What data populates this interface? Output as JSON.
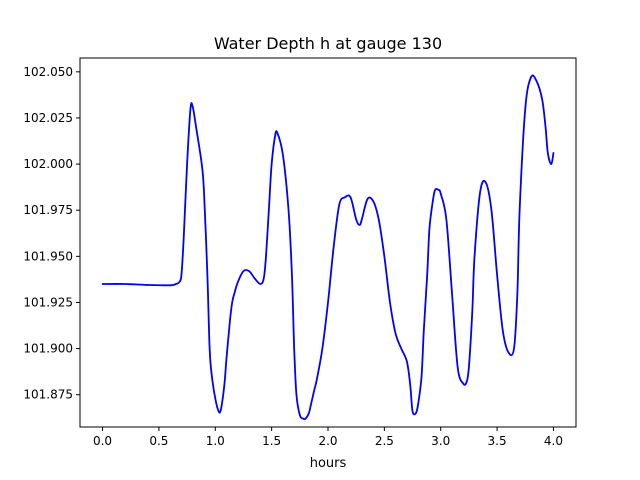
{
  "chart_data": {
    "type": "line",
    "title": "Water Depth h at gauge 130",
    "xlabel": "hours",
    "ylabel": "",
    "xlim": [
      -0.2,
      4.2
    ],
    "ylim": [
      101.8575,
      102.0575
    ],
    "xticks": [
      0.0,
      0.5,
      1.0,
      1.5,
      2.0,
      2.5,
      3.0,
      3.5,
      4.0
    ],
    "xtick_labels": [
      "0.0",
      "0.5",
      "1.0",
      "1.5",
      "2.0",
      "2.5",
      "3.0",
      "3.5",
      "4.0"
    ],
    "yticks": [
      101.875,
      101.9,
      101.925,
      101.95,
      101.975,
      102.0,
      102.025,
      102.05
    ],
    "ytick_labels": [
      "101.875",
      "101.900",
      "101.925",
      "101.950",
      "101.975",
      "102.000",
      "102.025",
      "102.050"
    ],
    "grid": false,
    "series": [
      {
        "color": "#0000ff",
        "x": [
          0.0,
          0.2,
          0.4,
          0.6,
          0.65,
          0.68,
          0.7,
          0.72,
          0.75,
          0.78,
          0.8,
          0.83,
          0.88,
          0.9,
          0.93,
          0.95,
          0.97,
          1.0,
          1.03,
          1.05,
          1.08,
          1.1,
          1.13,
          1.15,
          1.17,
          1.2,
          1.25,
          1.3,
          1.35,
          1.4,
          1.43,
          1.45,
          1.48,
          1.5,
          1.53,
          1.55,
          1.6,
          1.65,
          1.68,
          1.7,
          1.72,
          1.75,
          1.78,
          1.8,
          1.83,
          1.85,
          1.88,
          1.9,
          1.95,
          2.0,
          2.05,
          2.1,
          2.15,
          2.2,
          2.25,
          2.28,
          2.3,
          2.35,
          2.4,
          2.45,
          2.5,
          2.55,
          2.6,
          2.65,
          2.7,
          2.73,
          2.75,
          2.78,
          2.8,
          2.83,
          2.85,
          2.88,
          2.9,
          2.93,
          2.95,
          2.98,
          3.0,
          3.05,
          3.1,
          3.15,
          3.2,
          3.23,
          3.25,
          3.28,
          3.3,
          3.35,
          3.4,
          3.45,
          3.5,
          3.55,
          3.6,
          3.65,
          3.68,
          3.7,
          3.75,
          3.8,
          3.85,
          3.9,
          3.93,
          3.95,
          3.98,
          4.0
        ],
        "y": [
          101.935,
          101.935,
          101.9345,
          101.9343,
          101.935,
          101.936,
          101.94,
          101.96,
          102.0,
          102.03,
          102.031,
          102.02,
          102.0,
          101.985,
          101.94,
          101.9,
          101.885,
          101.873,
          101.866,
          101.867,
          101.88,
          101.895,
          101.915,
          101.925,
          101.93,
          101.936,
          101.942,
          101.942,
          101.938,
          101.935,
          101.938,
          101.95,
          101.98,
          102.0,
          102.015,
          102.017,
          102.005,
          101.975,
          101.94,
          101.9,
          101.875,
          101.864,
          101.862,
          101.862,
          101.865,
          101.87,
          101.878,
          101.883,
          101.9,
          101.925,
          101.955,
          101.978,
          101.982,
          101.982,
          101.97,
          101.967,
          101.97,
          101.981,
          101.98,
          101.97,
          101.95,
          101.925,
          101.908,
          101.9,
          101.893,
          101.88,
          101.866,
          101.865,
          101.87,
          101.885,
          101.91,
          101.94,
          101.965,
          101.98,
          101.986,
          101.986,
          101.984,
          101.97,
          101.93,
          101.89,
          101.881,
          101.882,
          101.89,
          101.92,
          101.95,
          101.985,
          101.99,
          101.975,
          101.94,
          101.91,
          101.898,
          101.9,
          101.93,
          101.975,
          102.03,
          102.047,
          102.045,
          102.035,
          102.02,
          102.006,
          102.0,
          102.006
        ]
      }
    ]
  }
}
